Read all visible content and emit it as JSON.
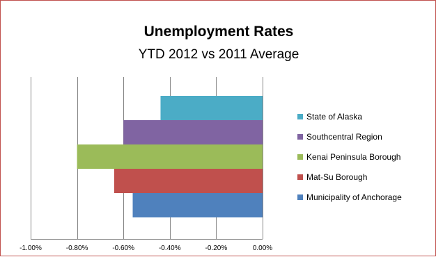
{
  "chart_data": {
    "type": "bar",
    "orientation": "horizontal",
    "title": "Unemployment Rates",
    "subtitle": "YTD 2012 vs 2011 Average",
    "categories": [
      "State of Alaska",
      "Southcentral Region",
      "Kenai Peninsula Borough",
      "Mat-Su Borough",
      "Municipality of Anchorage"
    ],
    "values": [
      -0.44,
      -0.6,
      -0.8,
      -0.64,
      -0.56
    ],
    "colors": [
      "#4bacc6",
      "#8064a2",
      "#9bbb59",
      "#c0504d",
      "#4f81bd"
    ],
    "xlim": [
      -1.0,
      0.0
    ],
    "x_ticks": [
      -1.0,
      -0.8,
      -0.6,
      -0.4,
      -0.2,
      0.0
    ],
    "x_tick_labels": [
      "-1.00%",
      "-0.80%",
      "-0.60%",
      "-0.40%",
      "-0.20%",
      "0.00%"
    ],
    "grid": "vertical major gridlines",
    "legend_position": "right"
  }
}
